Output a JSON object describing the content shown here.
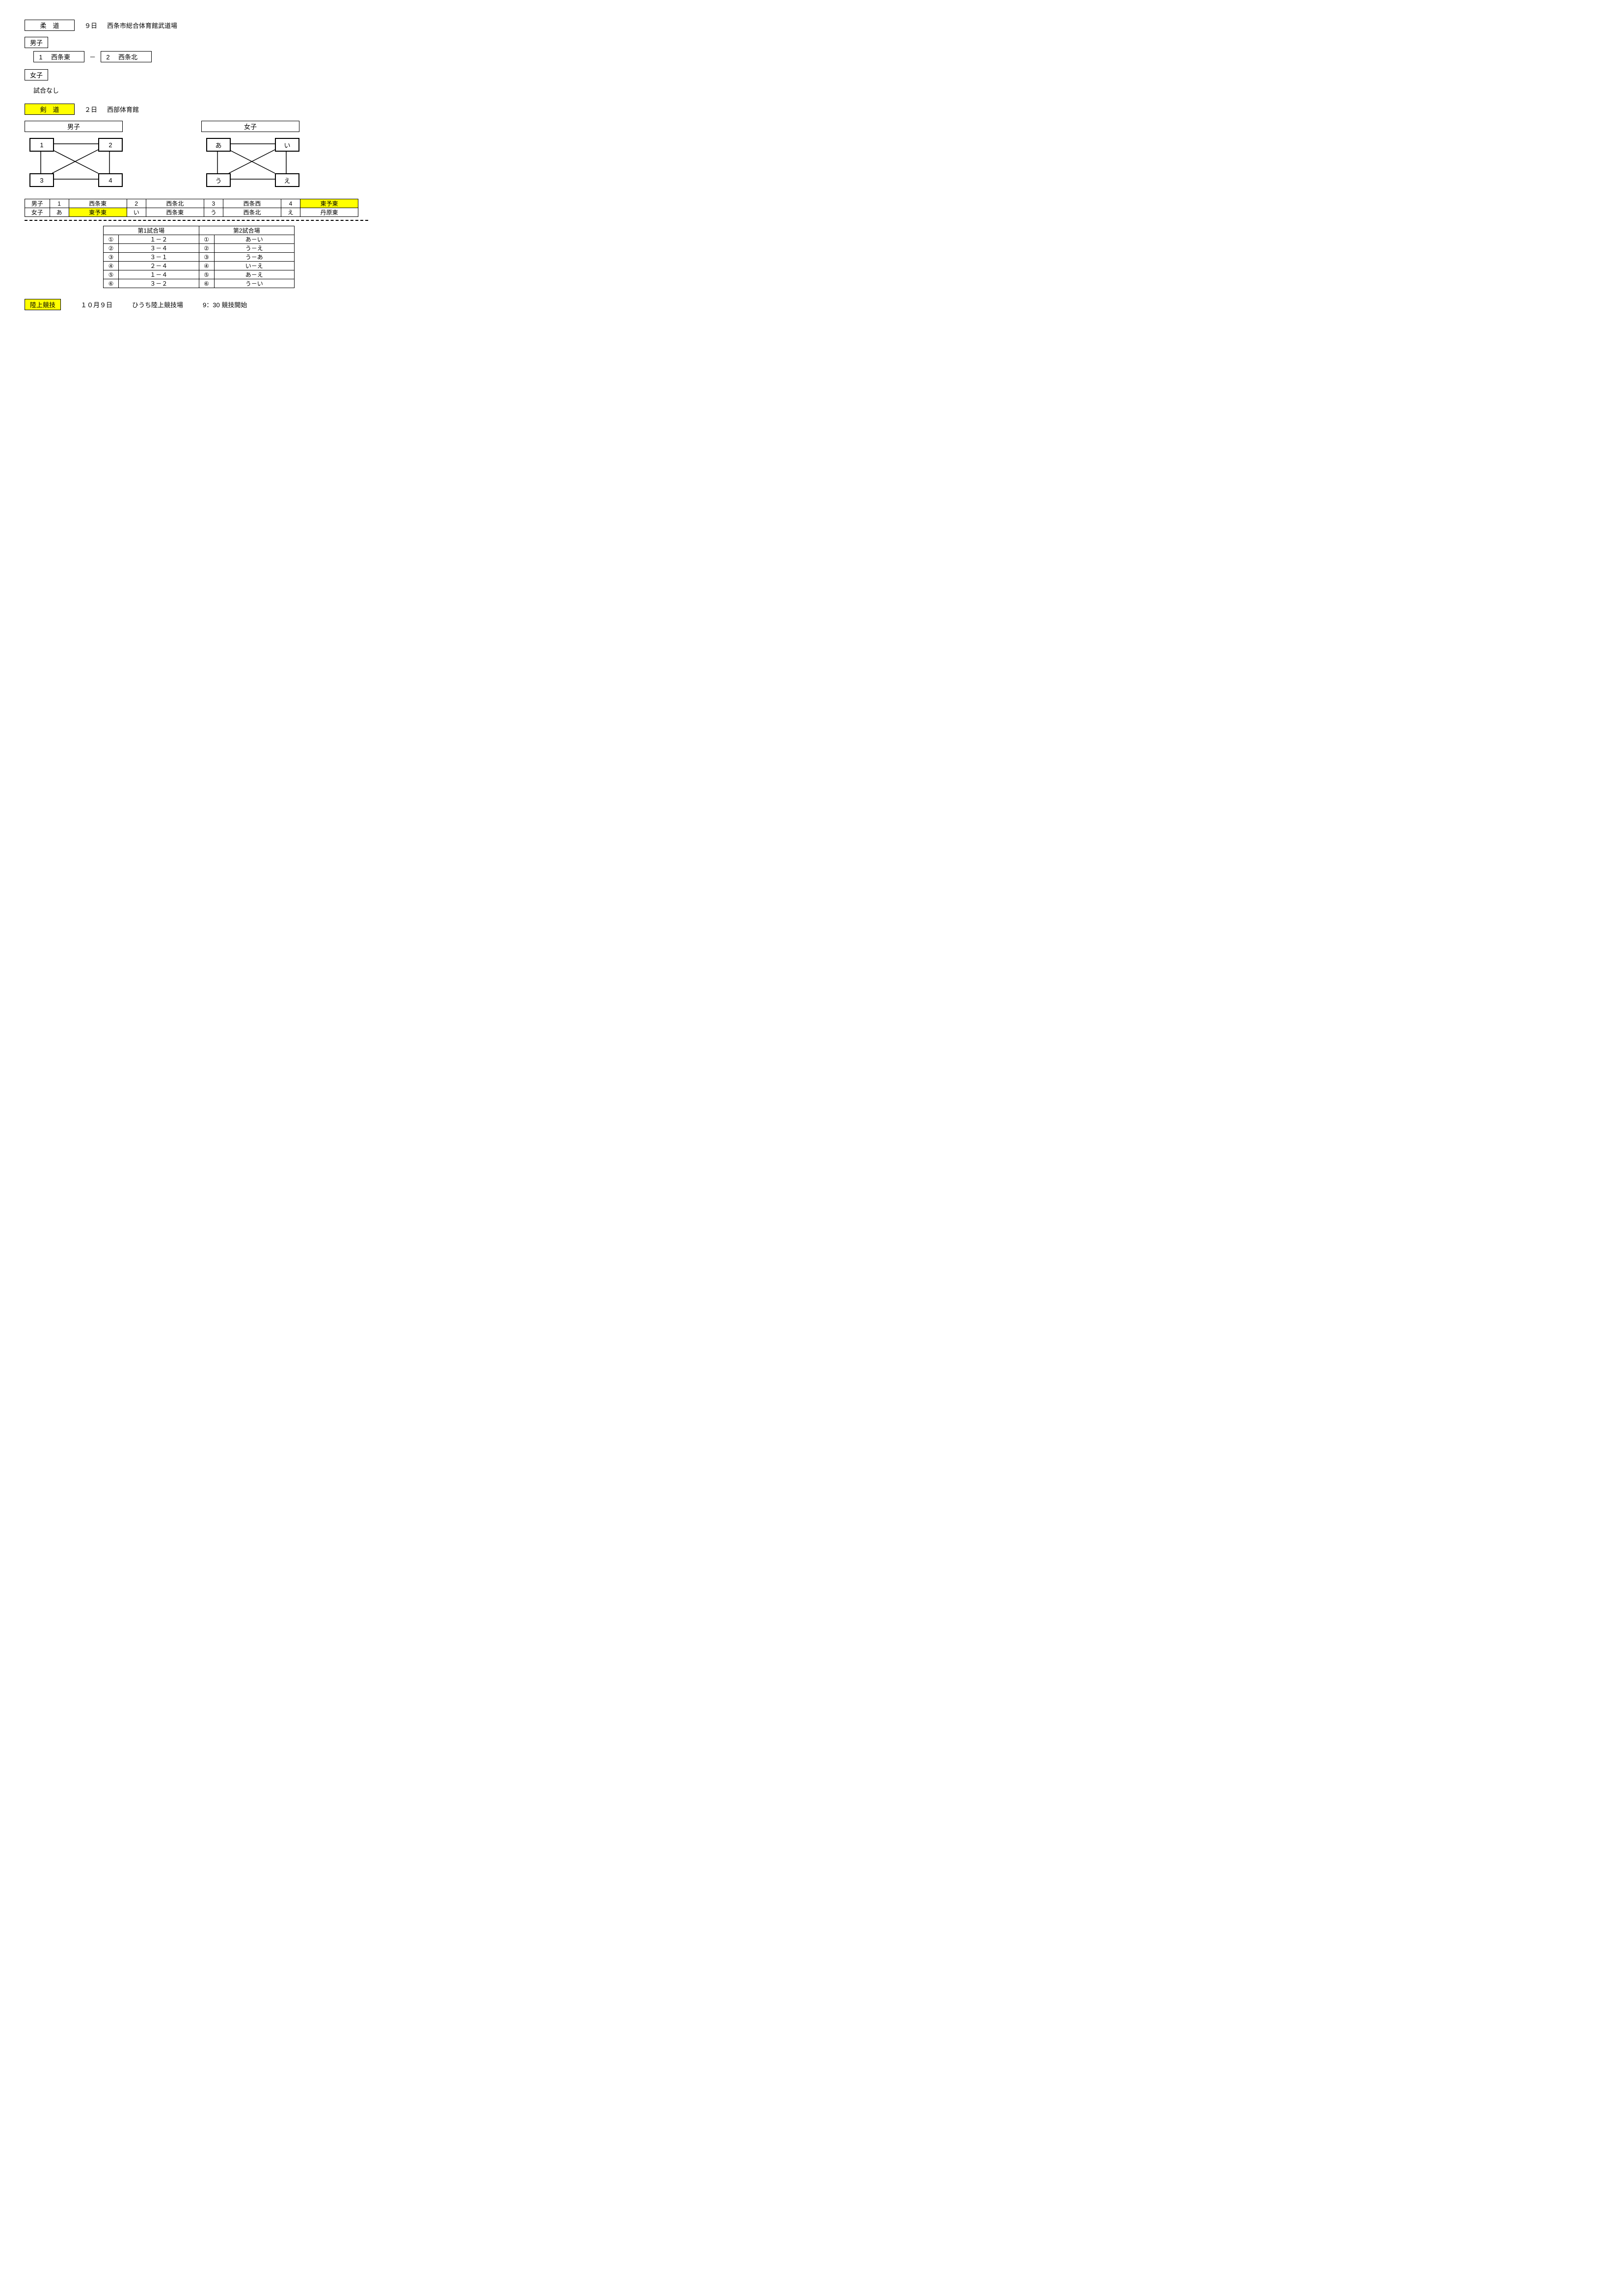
{
  "judo": {
    "title": "柔　道",
    "date": "９日",
    "venue": "西条市総合体育館武道場",
    "mens_label": "男子",
    "mens_match": {
      "num1": "1",
      "team1": "西条東",
      "sep": "－",
      "num2": "2",
      "team2": "西条北"
    },
    "womens_label": "女子",
    "womens_text": "試合なし"
  },
  "kendo": {
    "title": "剣　道",
    "date": "２日",
    "venue": "西部体育館",
    "mens_label": "男子",
    "womens_label": "女子",
    "mens_nodes": [
      "1",
      "2",
      "3",
      "4"
    ],
    "womens_nodes": [
      "あ",
      "い",
      "う",
      "え"
    ],
    "team_rows": [
      {
        "label": "男子",
        "cells": [
          {
            "k": "1",
            "h": false
          },
          {
            "v": "西条東",
            "h": false
          },
          {
            "k": "2",
            "h": false
          },
          {
            "v": "西条北",
            "h": false
          },
          {
            "k": "3",
            "h": false
          },
          {
            "v": "西条西",
            "h": false
          },
          {
            "k": "4",
            "h": false
          },
          {
            "v": "東予東",
            "h": true
          }
        ]
      },
      {
        "label": "女子",
        "cells": [
          {
            "k": "あ",
            "h": false
          },
          {
            "v": "東予東",
            "h": true
          },
          {
            "k": "い",
            "h": false
          },
          {
            "v": "西条東",
            "h": false
          },
          {
            "k": "う",
            "h": false
          },
          {
            "v": "西条北",
            "h": false
          },
          {
            "k": "え",
            "h": false
          },
          {
            "v": "丹原東",
            "h": false
          }
        ]
      }
    ],
    "schedule": {
      "header1": "第1試合場",
      "header2": "第2試合場",
      "rows": [
        {
          "n": "①",
          "a": "１－２",
          "b": "あ－い"
        },
        {
          "n": "②",
          "a": "３－４",
          "b": "う－え"
        },
        {
          "n": "③",
          "a": "３－１",
          "b": "う－あ"
        },
        {
          "n": "④",
          "a": "２－４",
          "b": "い－え"
        },
        {
          "n": "⑤",
          "a": "１－４",
          "b": "あ－え"
        },
        {
          "n": "⑥",
          "a": "３－２",
          "b": "う－い"
        }
      ]
    }
  },
  "track": {
    "title": "陸上競技",
    "date": "１０月９日",
    "venue": "ひうち陸上競技場",
    "time": "9：30  競技開始"
  },
  "colors": {
    "highlight": "#ffff00"
  }
}
